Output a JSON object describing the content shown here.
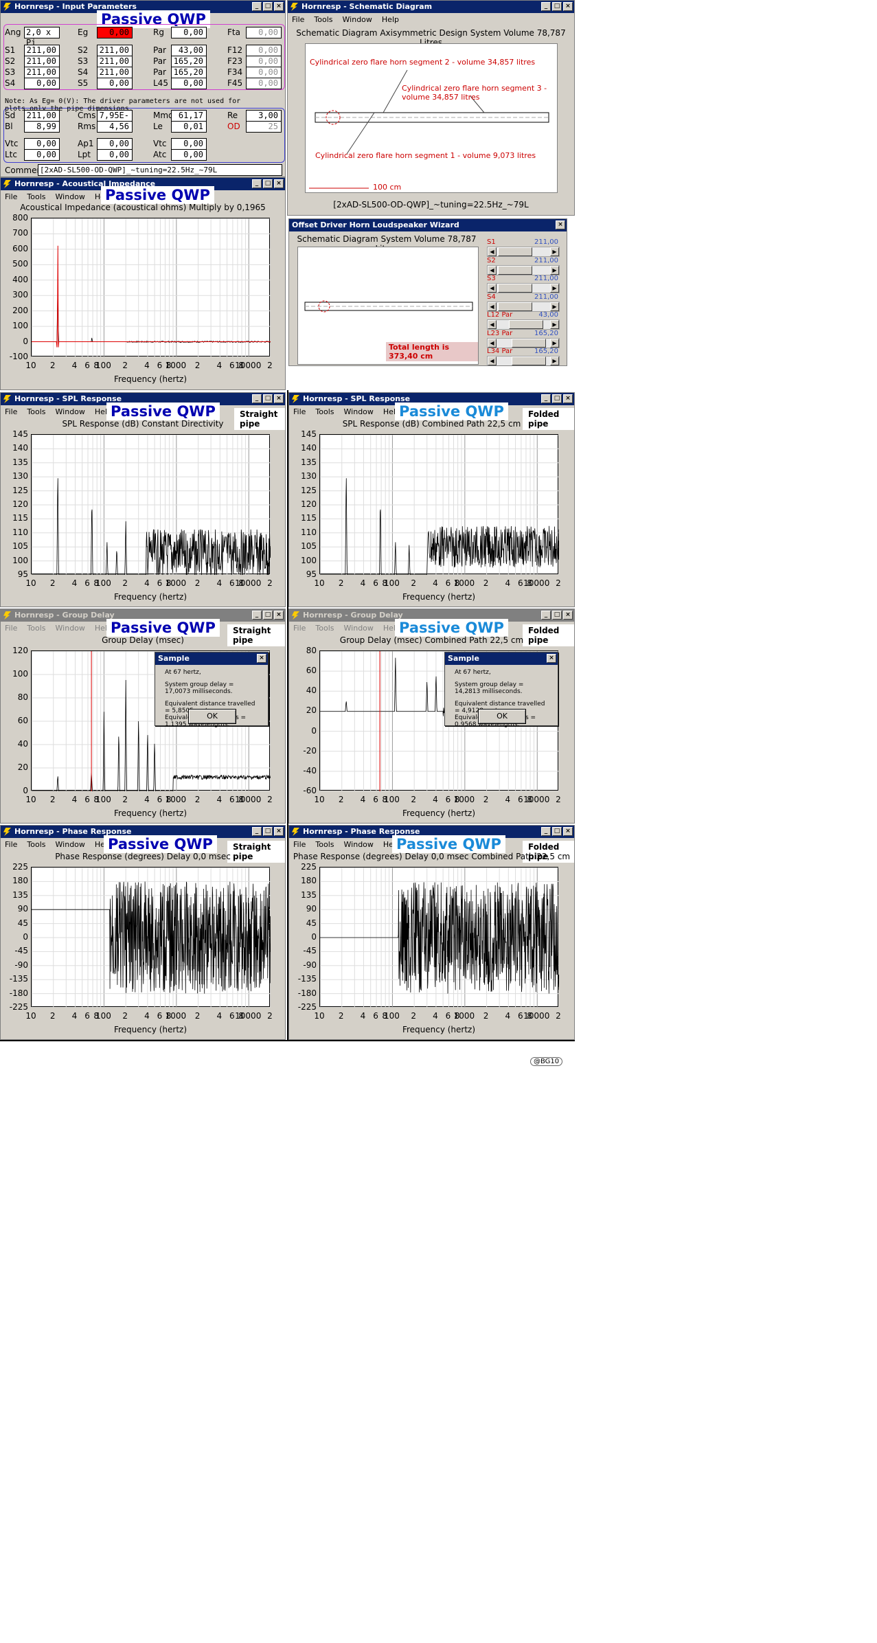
{
  "app_name": "Hornresp",
  "passive": "Passive QWP",
  "xtick_labels": [
    "10",
    "2",
    "4",
    "6",
    "8",
    "100",
    "2",
    "4",
    "6",
    "8",
    "1000",
    "2",
    "4",
    "6",
    "8",
    "10000",
    "2"
  ],
  "freq_label": "Frequency (hertz)",
  "menu_main": [
    "File",
    "Tools",
    "Window",
    "Help"
  ],
  "menu_wizard_note": "",
  "input": {
    "title": "Hornresp - Input Parameters",
    "rows1": [
      {
        "l1": "Ang",
        "v1": "2,0 x Pi",
        "l2": "Eg",
        "v2": "0,00",
        "l3": "Rg",
        "v3": "0,00",
        "l4": "Fta",
        "v4": "0,00"
      }
    ],
    "rows2": [
      {
        "l1": "S1",
        "v1": "211,00",
        "l2": "S2",
        "v2": "211,00",
        "l3": "Par",
        "v3": "43,00",
        "l4": "F12",
        "v4": "0,00"
      },
      {
        "l1": "S2",
        "v1": "211,00",
        "l2": "S3",
        "v2": "211,00",
        "l3": "Par",
        "v3": "165,20",
        "l4": "F23",
        "v4": "0,00"
      },
      {
        "l1": "S3",
        "v1": "211,00",
        "l2": "S4",
        "v2": "211,00",
        "l3": "Par",
        "v3": "165,20",
        "l4": "F34",
        "v4": "0,00"
      },
      {
        "l1": "S4",
        "v1": "0,00",
        "l2": "S5",
        "v2": "0,00",
        "l3": "L45",
        "v3": "0,00",
        "l4": "F45",
        "v4": "0,00"
      }
    ],
    "note": "Note: As Eg= 0(V): The driver parameters are not used for plots,only the pipe dimensions.",
    "rows3": [
      {
        "l1": "Sd",
        "v1": "211,00",
        "l2": "Cms",
        "v2": "7,95E-04",
        "l3": "Mmd",
        "v3": "61,17",
        "l4": "Re",
        "v4": "3,00"
      },
      {
        "l1": "Bl",
        "v1": "8,99",
        "l2": "Rms",
        "v2": "4,56",
        "l3": "Le",
        "v3": "0,01",
        "l4": "OD",
        "v4": "25"
      }
    ],
    "rows4": [
      {
        "l1": "Vtc",
        "v1": "0,00",
        "l2": "Ap1",
        "v2": "0,00",
        "l3": "Vtc",
        "v3": "0,00"
      },
      {
        "l1": "Ltc",
        "v1": "0,00",
        "l2": "Lpt",
        "v2": "0,00",
        "l3": "Atc",
        "v3": "0,00"
      }
    ],
    "comment_label": "Comment",
    "comment": "[2xAD-SL500-OD-QWP]_~tuning=22.5Hz_~79L"
  },
  "schematic": {
    "title": "Hornresp - Schematic Diagram",
    "header": "Schematic Diagram   Axisymmetric Design   System Volume 78,787 Litres",
    "seg2": "Cylindrical zero flare horn segment 2 - volume 34,857 litres",
    "seg3": "Cylindrical zero flare horn segment 3 - volume 34,857 litres",
    "seg1": "Cylindrical zero flare horn segment 1 - volume 9,073 litres",
    "scale": "100 cm",
    "footer": "[2xAD-SL500-OD-QWP]_~tuning=22.5Hz_~79L"
  },
  "wizard": {
    "title": "Offset Driver Horn Loudspeaker Wizard",
    "header": "Schematic Diagram   System Volume 78,787 Litres",
    "total": "Total length is 373,40 cm",
    "sliders": [
      {
        "label": "S1",
        "value": "211,00",
        "pos": 0.05
      },
      {
        "label": "S2",
        "value": "211,00",
        "pos": 0.05
      },
      {
        "label": "S3",
        "value": "211,00",
        "pos": 0.05
      },
      {
        "label": "S4",
        "value": "211,00",
        "pos": 0.05
      },
      {
        "label": "L12  Par",
        "value": "43,00",
        "pos": 0.45
      },
      {
        "label": "L23  Par",
        "value": "165,20",
        "pos": 0.55
      },
      {
        "label": "L34  Par",
        "value": "165,20",
        "pos": 0.55
      }
    ]
  },
  "impedance": {
    "title": "Hornresp - Acoustical Impedance",
    "header": "Acoustical Impedance (acoustical ohms)   Multiply by 0,1965",
    "yticks": [
      "800",
      "700",
      "600",
      "500",
      "400",
      "300",
      "200",
      "100",
      "0",
      "-100"
    ]
  },
  "spl_straight": {
    "title": "Hornresp - SPL Response",
    "header": "SPL Response (dB)   Constant Directivity",
    "tag": "Straight pipe",
    "yticks": [
      "145",
      "140",
      "135",
      "130",
      "125",
      "120",
      "115",
      "110",
      "105",
      "100",
      "95"
    ]
  },
  "spl_folded": {
    "title": "Hornresp - SPL Response",
    "header": "SPL Response (dB)   Combined   Path 22,5 cm",
    "tag": "Folded pipe",
    "yticks": [
      "145",
      "140",
      "135",
      "130",
      "125",
      "120",
      "115",
      "110",
      "105",
      "100",
      "95"
    ]
  },
  "gd_straight": {
    "title": "Hornresp - Group Delay",
    "header": "Group Delay (msec)",
    "tag": "Straight pipe",
    "yticks": [
      "120",
      "100",
      "80",
      "60",
      "40",
      "20",
      "0"
    ],
    "dialog": {
      "title": "Sample",
      "l1": "At 67 hertz,",
      "l2": "System group delay = 17,0073 milliseconds.",
      "l3": "Equivalent distance travelled = 5,8505 metres.",
      "l4": "Equivalent wavelengths = 1,1395 wavelengths.",
      "ok": "OK"
    }
  },
  "gd_folded": {
    "title": "Hornresp - Group Delay",
    "header": "Group Delay (msec)   Combined   Path 22,5 cm",
    "tag": "Folded pipe",
    "yticks": [
      "80",
      "60",
      "40",
      "20",
      "0",
      "-20",
      "-40",
      "-60"
    ],
    "dialog": {
      "title": "Sample",
      "l1": "At 67 hertz,",
      "l2": "System group delay = 14,2813 milliseconds.",
      "l3": "Equivalent distance travelled = 4,9128 metres.",
      "l4": "Equivalent wavelengths = 0,9568 wavelengths.",
      "ok": "OK"
    }
  },
  "ph_straight": {
    "title": "Hornresp - Phase Response",
    "header": "Phase Response (degrees)   Delay 0,0 msec",
    "tag": "Straight pipe",
    "yticks": [
      "225",
      "180",
      "135",
      "90",
      "45",
      "0",
      "-45",
      "-90",
      "-135",
      "-180",
      "-225"
    ]
  },
  "ph_folded": {
    "title": "Hornresp - Phase Response",
    "header": "Phase Response (degrees)   Delay 0,0 msec   Combined   Path 22,5 cm",
    "tag": "Folded pipe",
    "yticks": [
      "225",
      "180",
      "135",
      "90",
      "45",
      "0",
      "-45",
      "-90",
      "-135",
      "-180",
      "-225"
    ]
  },
  "signature": "@BG10"
}
